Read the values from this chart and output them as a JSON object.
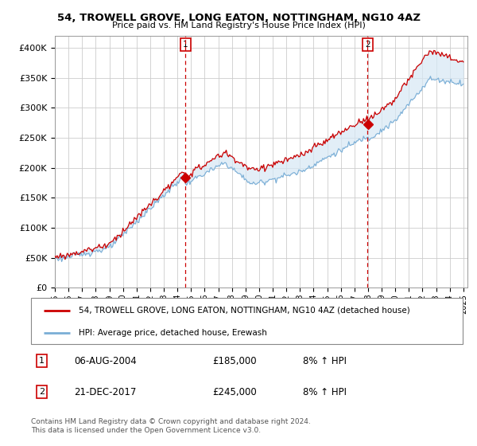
{
  "title": "54, TROWELL GROVE, LONG EATON, NOTTINGHAM, NG10 4AZ",
  "subtitle": "Price paid vs. HM Land Registry's House Price Index (HPI)",
  "legend_label1": "54, TROWELL GROVE, LONG EATON, NOTTINGHAM, NG10 4AZ (detached house)",
  "legend_label2": "HPI: Average price, detached house, Erewash",
  "transaction1_date": "06-AUG-2004",
  "transaction1_price": "£185,000",
  "transaction1_hpi": "8% ↑ HPI",
  "transaction2_date": "21-DEC-2017",
  "transaction2_price": "£245,000",
  "transaction2_hpi": "8% ↑ HPI",
  "footer": "Contains HM Land Registry data © Crown copyright and database right 2024.\nThis data is licensed under the Open Government Licence v3.0.",
  "line1_color": "#cc0000",
  "line2_color": "#7aaed6",
  "fill_color": "#d6e8f5",
  "vline_color": "#cc0000",
  "bg_color": "#ffffff",
  "grid_color": "#cccccc",
  "ylim": [
    0,
    420000
  ],
  "yticks": [
    0,
    50000,
    100000,
    150000,
    200000,
    250000,
    300000,
    350000,
    400000
  ],
  "ytick_labels": [
    "£0",
    "£50K",
    "£100K",
    "£150K",
    "£200K",
    "£250K",
    "£300K",
    "£350K",
    "£400K"
  ],
  "start_year": 1995,
  "end_year": 2025,
  "transaction1_year": 2004.58,
  "transaction2_year": 2017.96,
  "transaction1_price_val": 185000,
  "transaction2_price_val": 245000
}
